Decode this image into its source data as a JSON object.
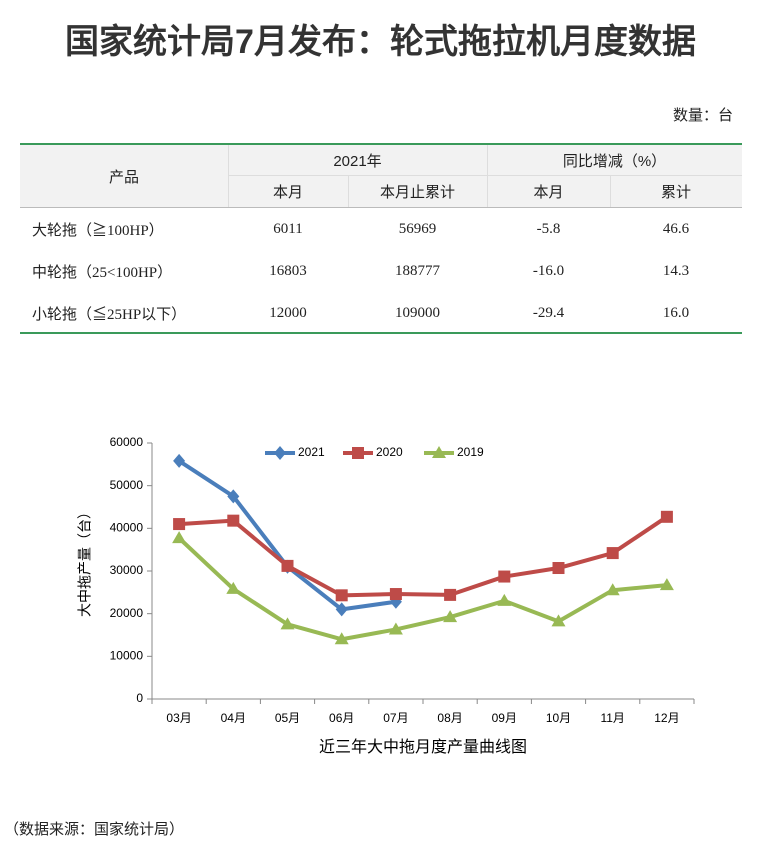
{
  "header": {
    "title": "国家统计局7月发布：轮式拖拉机月度数据",
    "unit": "数量：台"
  },
  "table": {
    "header": {
      "product": "产品",
      "group1": "2021年",
      "group2": "同比增减（%）",
      "sub": [
        "本月",
        "本月止累计",
        "本月",
        "累计"
      ]
    },
    "rows": [
      [
        "大轮拖（≧100HP）",
        "6011",
        "56969",
        "-5.8",
        "46.6"
      ],
      [
        "中轮拖（25<100HP）",
        "16803",
        "188777",
        "-16.0",
        "14.3"
      ],
      [
        "小轮拖（≦25HP以下）",
        "12000",
        "109000",
        "-29.4",
        "16.0"
      ]
    ]
  },
  "chart_data": {
    "type": "line",
    "title": "近三年大中拖月度产量曲线图",
    "y_label": "大中拖产量（台）",
    "categories": [
      "03月",
      "04月",
      "05月",
      "06月",
      "07月",
      "08月",
      "09月",
      "10月",
      "11月",
      "12月"
    ],
    "series": [
      {
        "name": "2021",
        "color": "#4a7ebb",
        "marker": "diamond",
        "values": [
          55800,
          47500,
          31000,
          21000,
          22800,
          null,
          null,
          null,
          null,
          null
        ]
      },
      {
        "name": "2020",
        "color": "#be4b48",
        "marker": "square",
        "values": [
          41000,
          41800,
          31200,
          24300,
          24600,
          24400,
          28700,
          30700,
          34200,
          42700
        ]
      },
      {
        "name": "2019",
        "color": "#98b954",
        "marker": "triangle",
        "values": [
          37700,
          25800,
          17500,
          14000,
          16300,
          19200,
          23000,
          18200,
          25500,
          26700
        ]
      }
    ],
    "ylim": [
      0,
      60000
    ],
    "yticks": [
      0,
      10000,
      20000,
      30000,
      40000,
      50000,
      60000
    ],
    "legend": "top"
  },
  "source": "（数据来源：国家统计局）"
}
